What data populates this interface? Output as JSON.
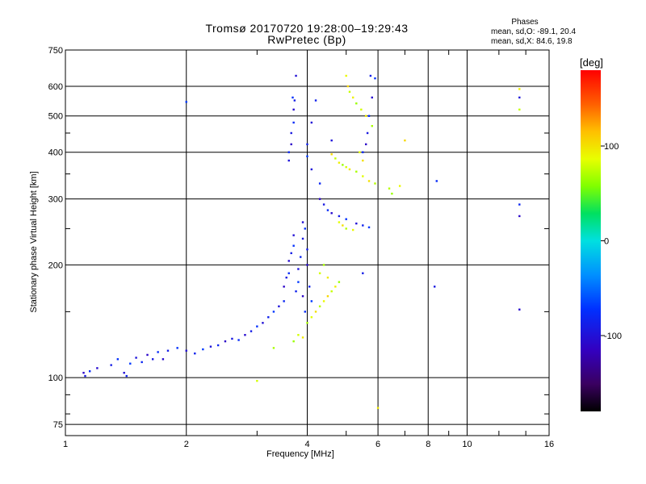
{
  "chart_data": {
    "type": "scatter",
    "title": "Tromsø 20170720 19:28:00–19:29:43",
    "subtitle": "RwPretec (Bp)",
    "xlabel": "Frequency [MHz]",
    "ylabel": "Stationary phase Virtual Height [km]",
    "x_scale": "log",
    "y_scale": "log",
    "xlim": [
      1,
      16
    ],
    "ylim": [
      70,
      750
    ],
    "x_ticks": [
      "1",
      "2",
      "4",
      "6",
      "8",
      "10",
      "16"
    ],
    "y_ticks": [
      "75",
      "100",
      "200",
      "300",
      "400",
      "500",
      "600",
      "750"
    ],
    "grid": true,
    "colorbar": {
      "label": "[deg]",
      "ticks": [
        "100",
        "0",
        "-100"
      ],
      "range": [
        -180,
        180
      ]
    },
    "phase_stats": {
      "title": "Phases",
      "o_line": "mean, sd,O: -89.1, 20.4",
      "x_line": "mean, sd,X:  84.6, 19.8"
    },
    "series": [
      {
        "name": "O",
        "phase_deg": -89.1,
        "points": [
          [
            1.11,
            103
          ],
          [
            1.12,
            101
          ],
          [
            1.15,
            104
          ],
          [
            1.2,
            106
          ],
          [
            1.3,
            108
          ],
          [
            1.35,
            112
          ],
          [
            1.4,
            103
          ],
          [
            1.42,
            101
          ],
          [
            1.45,
            109
          ],
          [
            1.5,
            113
          ],
          [
            1.55,
            110
          ],
          [
            1.6,
            115
          ],
          [
            1.65,
            112
          ],
          [
            1.7,
            117
          ],
          [
            1.75,
            112
          ],
          [
            1.8,
            118
          ],
          [
            1.9,
            120
          ],
          [
            2.0,
            118
          ],
          [
            2.1,
            116
          ],
          [
            2.2,
            119
          ],
          [
            2.3,
            121
          ],
          [
            2.4,
            122
          ],
          [
            2.5,
            125
          ],
          [
            2.6,
            127
          ],
          [
            2.7,
            126
          ],
          [
            2.8,
            130
          ],
          [
            2.9,
            133
          ],
          [
            3.0,
            137
          ],
          [
            3.1,
            140
          ],
          [
            3.2,
            145
          ],
          [
            3.3,
            150
          ],
          [
            3.4,
            155
          ],
          [
            3.5,
            160
          ],
          [
            3.5,
            175
          ],
          [
            3.55,
            185
          ],
          [
            3.6,
            190
          ],
          [
            3.6,
            205
          ],
          [
            3.65,
            215
          ],
          [
            3.7,
            225
          ],
          [
            3.7,
            240
          ],
          [
            3.75,
            170
          ],
          [
            3.8,
            180
          ],
          [
            3.8,
            195
          ],
          [
            3.85,
            210
          ],
          [
            3.9,
            165
          ],
          [
            3.9,
            235
          ],
          [
            3.95,
            150
          ],
          [
            4.0,
            200
          ],
          [
            4.0,
            220
          ],
          [
            3.95,
            250
          ],
          [
            3.9,
            260
          ],
          [
            4.05,
            175
          ],
          [
            4.1,
            160
          ],
          [
            3.6,
            380
          ],
          [
            3.6,
            400
          ],
          [
            3.65,
            420
          ],
          [
            3.65,
            450
          ],
          [
            3.7,
            480
          ],
          [
            3.7,
            520
          ],
          [
            3.72,
            550
          ],
          [
            3.68,
            560
          ],
          [
            3.75,
            640
          ],
          [
            4.0,
            420
          ],
          [
            4.0,
            390
          ],
          [
            4.1,
            360
          ],
          [
            4.3,
            330
          ],
          [
            4.3,
            300
          ],
          [
            4.4,
            290
          ],
          [
            4.5,
            280
          ],
          [
            4.6,
            275
          ],
          [
            4.8,
            270
          ],
          [
            5.0,
            265
          ],
          [
            5.3,
            258
          ],
          [
            5.5,
            255
          ],
          [
            5.7,
            252
          ],
          [
            4.6,
            430
          ],
          [
            5.5,
            400
          ],
          [
            5.6,
            420
          ],
          [
            5.65,
            450
          ],
          [
            5.7,
            500
          ],
          [
            5.8,
            560
          ],
          [
            5.75,
            640
          ],
          [
            5.9,
            630
          ],
          [
            4.1,
            480
          ],
          [
            4.2,
            550
          ],
          [
            2.0,
            545
          ],
          [
            13.5,
            560
          ],
          [
            13.5,
            290
          ],
          [
            13.5,
            270
          ],
          [
            8.3,
            175
          ],
          [
            8.4,
            335
          ],
          [
            13.5,
            152
          ],
          [
            5.5,
            190
          ]
        ]
      },
      {
        "name": "X",
        "phase_deg": 84.6,
        "points": [
          [
            3.7,
            125
          ],
          [
            3.8,
            130
          ],
          [
            3.9,
            128
          ],
          [
            4.0,
            140
          ],
          [
            4.1,
            145
          ],
          [
            4.2,
            150
          ],
          [
            4.3,
            155
          ],
          [
            4.4,
            160
          ],
          [
            4.5,
            165
          ],
          [
            4.6,
            170
          ],
          [
            4.7,
            175
          ],
          [
            4.8,
            180
          ],
          [
            4.3,
            190
          ],
          [
            4.5,
            185
          ],
          [
            4.4,
            200
          ],
          [
            4.8,
            260
          ],
          [
            4.9,
            255
          ],
          [
            5.0,
            250
          ],
          [
            5.2,
            248
          ],
          [
            4.6,
            395
          ],
          [
            4.7,
            385
          ],
          [
            4.8,
            375
          ],
          [
            4.9,
            370
          ],
          [
            5.0,
            365
          ],
          [
            5.1,
            360
          ],
          [
            5.3,
            355
          ],
          [
            5.5,
            345
          ],
          [
            5.7,
            335
          ],
          [
            5.9,
            330
          ],
          [
            5.0,
            640
          ],
          [
            5.05,
            600
          ],
          [
            5.1,
            580
          ],
          [
            5.2,
            560
          ],
          [
            5.3,
            540
          ],
          [
            5.45,
            520
          ],
          [
            5.6,
            500
          ],
          [
            5.8,
            470
          ],
          [
            5.4,
            400
          ],
          [
            5.5,
            380
          ],
          [
            6.4,
            320
          ],
          [
            6.8,
            325
          ],
          [
            7.0,
            430
          ],
          [
            13.5,
            520
          ],
          [
            13.5,
            590
          ],
          [
            6.5,
            310
          ],
          [
            3.0,
            98
          ],
          [
            6.0,
            83
          ],
          [
            3.3,
            120
          ]
        ]
      }
    ]
  }
}
